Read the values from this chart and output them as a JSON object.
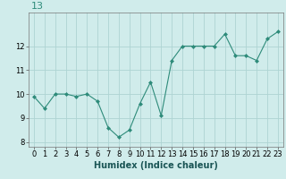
{
  "x": [
    0,
    1,
    2,
    3,
    4,
    5,
    6,
    7,
    8,
    9,
    10,
    11,
    12,
    13,
    14,
    15,
    16,
    17,
    18,
    19,
    20,
    21,
    22,
    23
  ],
  "y": [
    9.9,
    9.4,
    10.0,
    10.0,
    9.9,
    10.0,
    9.7,
    8.6,
    8.2,
    8.5,
    9.6,
    10.5,
    9.1,
    11.4,
    12.0,
    12.0,
    12.0,
    12.0,
    12.5,
    11.6,
    11.6,
    11.4,
    12.3,
    12.6
  ],
  "line_color": "#2e8b7a",
  "marker": "D",
  "marker_size": 2,
  "bg_color": "#d0eceb",
  "grid_color": "#aed4d3",
  "xlabel": "Humidex (Indice chaleur)",
  "ylim": [
    7.8,
    13.4
  ],
  "xlim": [
    -0.5,
    23.5
  ],
  "yticks": [
    8,
    9,
    10,
    11,
    12
  ],
  "xticks": [
    0,
    1,
    2,
    3,
    4,
    5,
    6,
    7,
    8,
    9,
    10,
    11,
    12,
    13,
    14,
    15,
    16,
    17,
    18,
    19,
    20,
    21,
    22,
    23
  ],
  "title": "13",
  "title_color": "#2e8b7a",
  "title_fontsize": 8,
  "xlabel_fontsize": 7,
  "tick_fontsize": 6
}
